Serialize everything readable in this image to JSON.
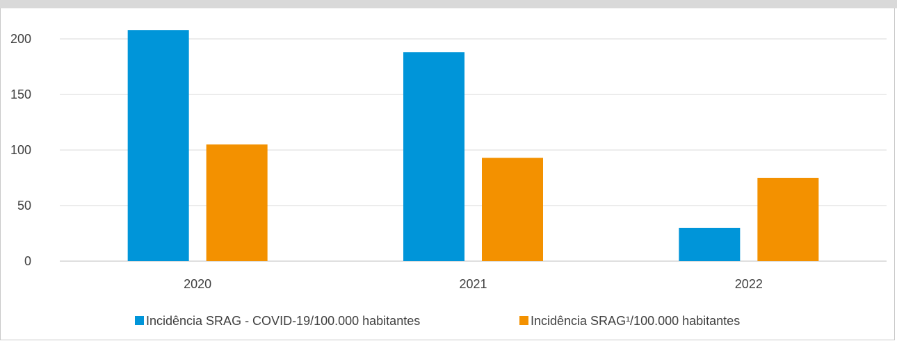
{
  "chart_data": {
    "type": "bar",
    "categories": [
      "2020",
      "2021",
      "2022"
    ],
    "series": [
      {
        "name": "Incidência SRAG - COVID-19/100.000 habitantes",
        "values": [
          208,
          188,
          30
        ],
        "color": "#0095d9"
      },
      {
        "name": "Incidência SRAG¹/100.000 habitantes",
        "values": [
          105,
          93,
          75
        ],
        "color": "#f39100"
      }
    ],
    "yticks": [
      "0",
      "50",
      "100",
      "150",
      "200"
    ],
    "ylim": [
      0,
      200
    ],
    "grid": true,
    "legend_position": "bottom"
  }
}
